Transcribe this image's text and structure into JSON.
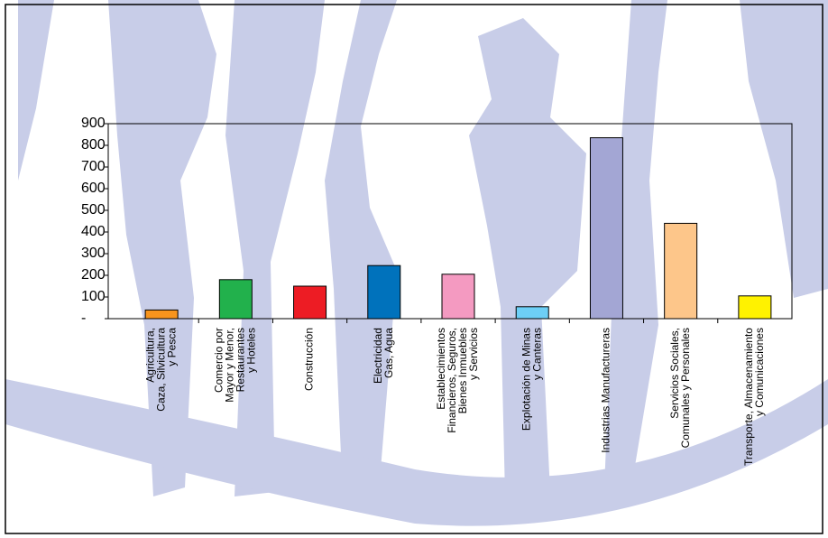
{
  "chart_data": {
    "type": "bar",
    "categories": [
      [
        "Agricultura,",
        "Caza, Silvicultura",
        "y Pesca"
      ],
      [
        "Comercio por",
        "Mayor y Menor,",
        "Restaurantes",
        "y Hoteles"
      ],
      [
        "Construcción"
      ],
      [
        "Electricidad",
        "Gas, Agua"
      ],
      [
        "Establecimientos",
        "Financieros, Seguros,",
        "Bienes Inmuebles",
        "y Servicios"
      ],
      [
        "Explotación de Minas",
        "y Canteras"
      ],
      [
        "Industrias Manufactureras"
      ],
      [
        "Servicios Sociales,",
        "Comunales y Personales"
      ],
      [
        "Transporte, Almacenamiento",
        "y Comunicaciones"
      ]
    ],
    "values": [
      40,
      180,
      150,
      245,
      205,
      55,
      835,
      440,
      105
    ],
    "colors": [
      "#f7941d",
      "#22b14c",
      "#ed1c24",
      "#0072bc",
      "#f49ac1",
      "#6dcff6",
      "#a3a6d4",
      "#fdc68a",
      "#fff200"
    ],
    "ylim": [
      0,
      900
    ],
    "yticks": [
      {
        "value": 0,
        "label": "-"
      },
      100,
      200,
      300,
      400,
      500,
      600,
      700,
      800,
      900
    ],
    "grid": false
  }
}
